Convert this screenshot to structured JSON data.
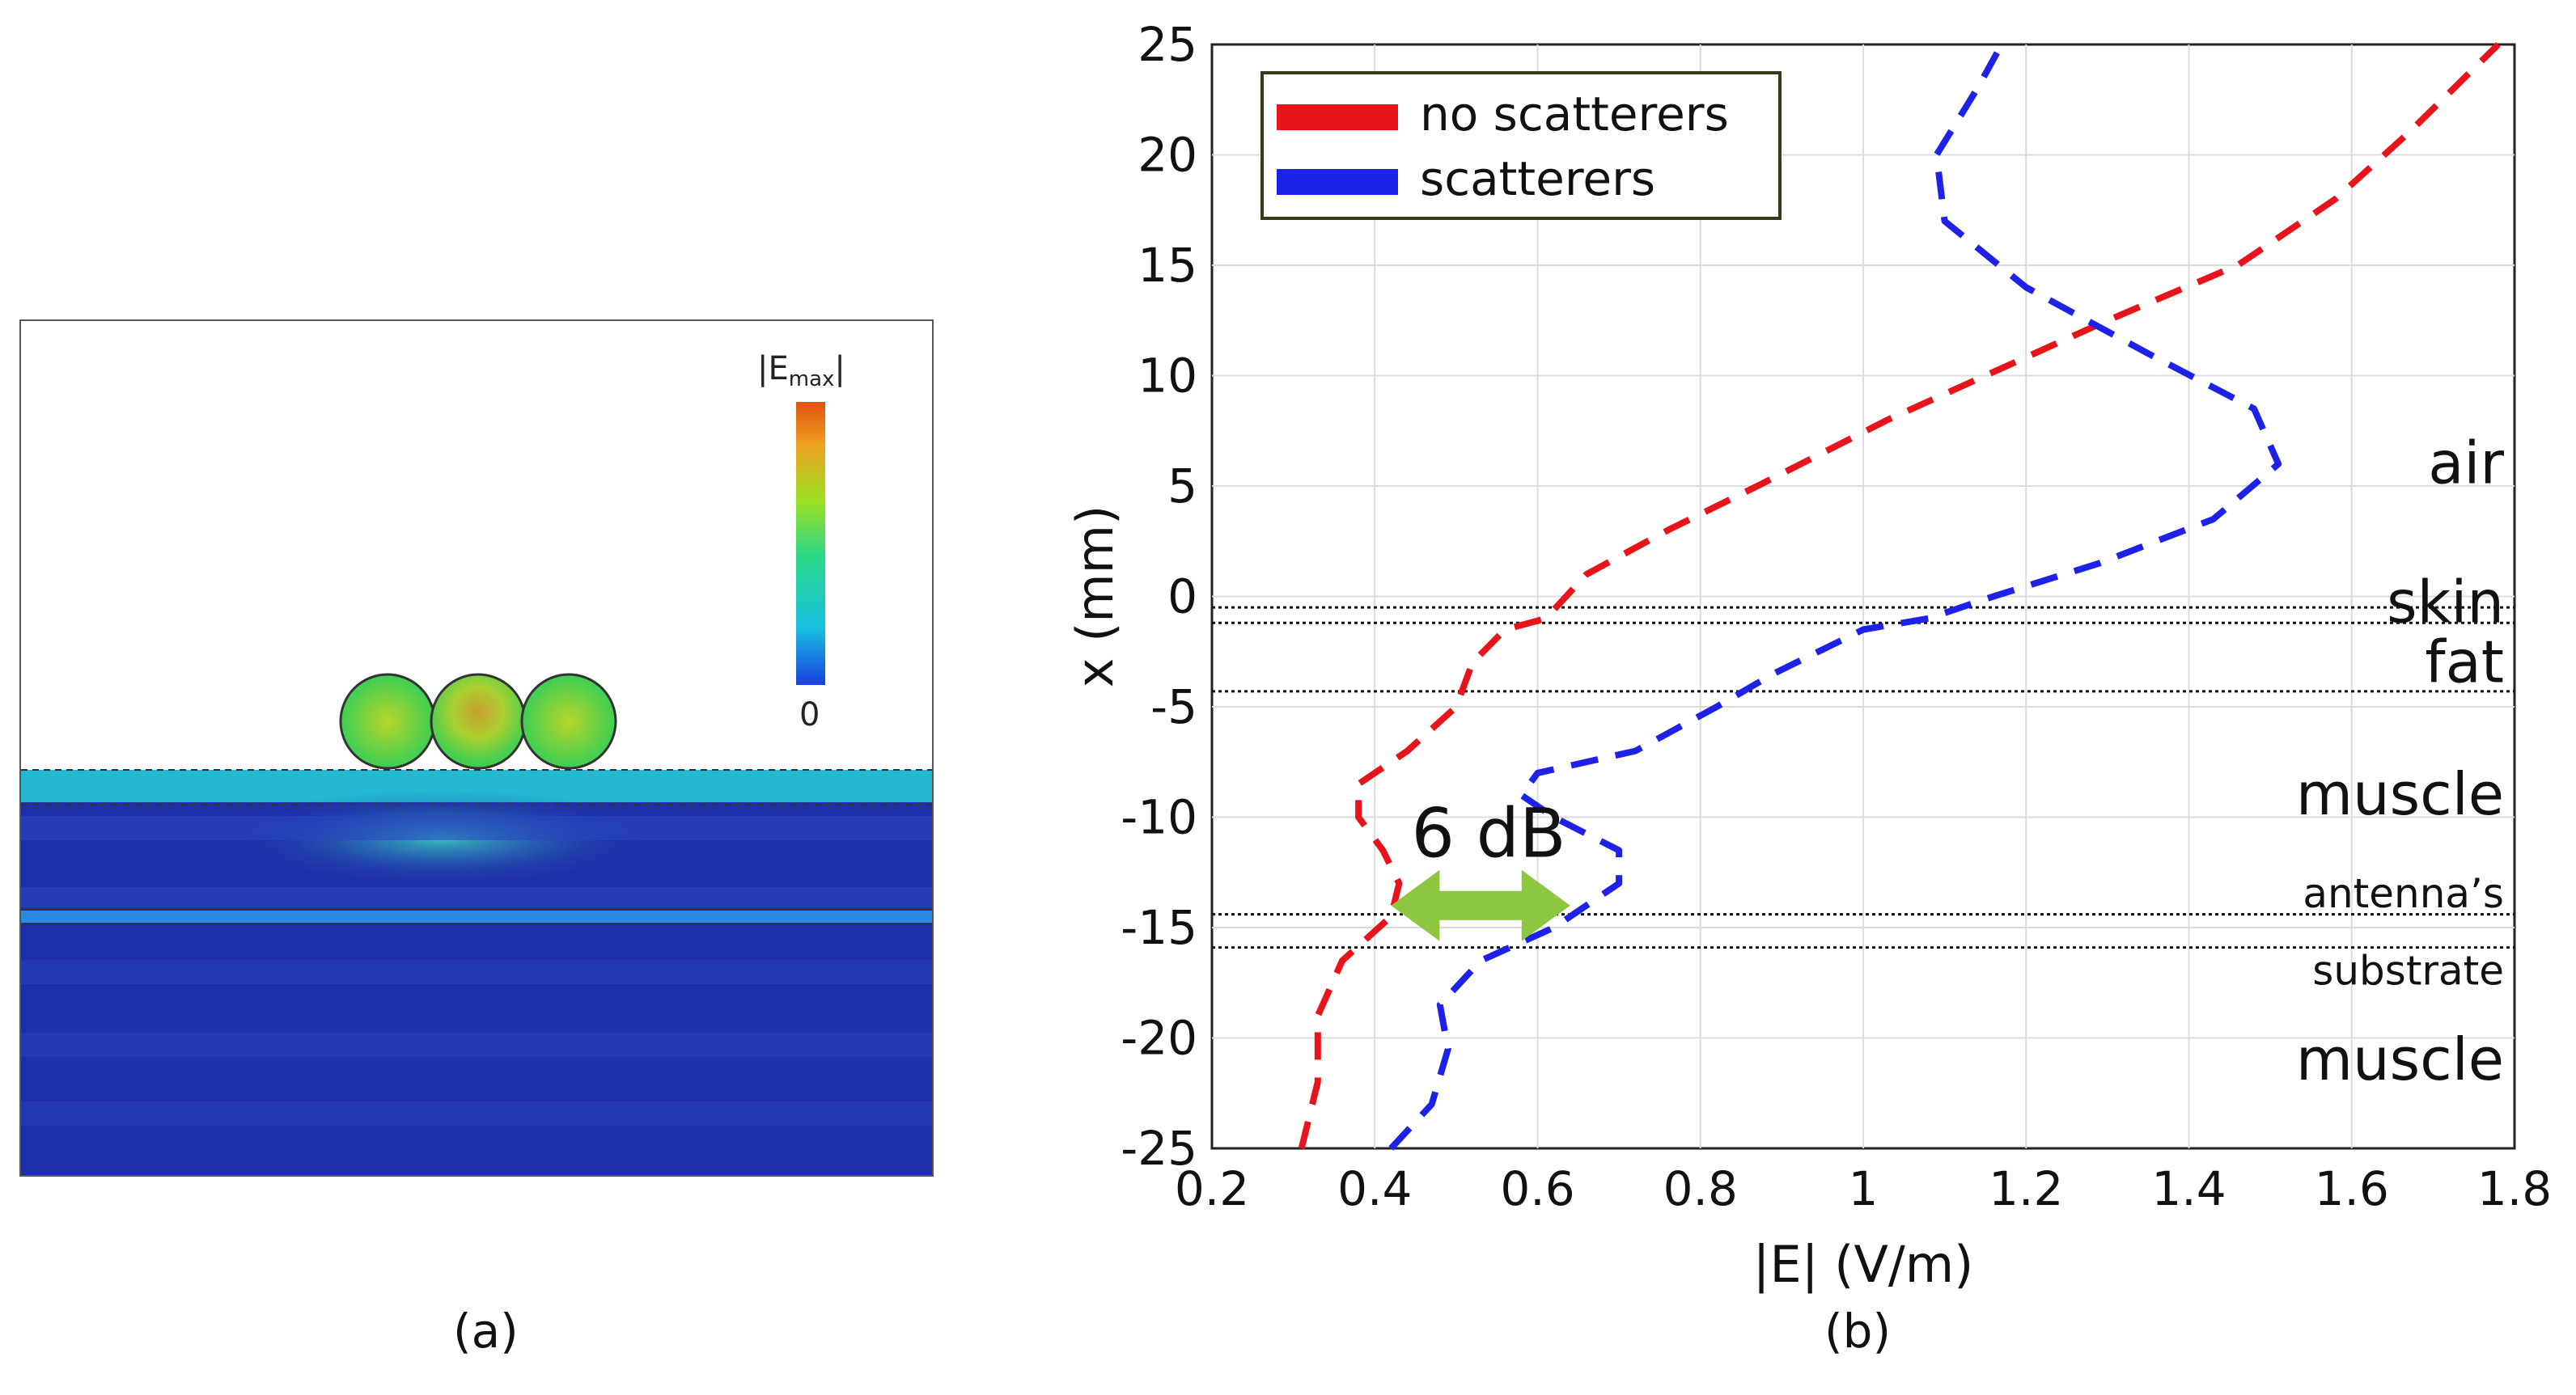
{
  "panel_a": {
    "caption": "(a)",
    "colorbar_label": "|E",
    "colorbar_label_sub": "max",
    "colorbar_label_end": "|",
    "colorbar_min": "0"
  },
  "panel_b": {
    "caption": "(b)"
  },
  "chart_data": {
    "type": "line",
    "xlabel": "|E| (V/m)",
    "ylabel": "x (mm)",
    "xlim": [
      0.2,
      1.8
    ],
    "ylim": [
      -25,
      25
    ],
    "xticks": [
      "0.2",
      "0.4",
      "0.6",
      "0.8",
      "1",
      "1.2",
      "1.4",
      "1.6",
      "1.8"
    ],
    "yticks": [
      "25",
      "20",
      "15",
      "10",
      "5",
      "0",
      "-5",
      "-10",
      "-15",
      "-20",
      "-25"
    ],
    "grid": true,
    "legend_position": "top-left",
    "series": [
      {
        "name": "no scatterers",
        "color": "#e8141b",
        "style": "dashed",
        "points": [
          [
            0.31,
            -25
          ],
          [
            0.33,
            -22
          ],
          [
            0.33,
            -19
          ],
          [
            0.36,
            -16.5
          ],
          [
            0.42,
            -14.5
          ],
          [
            0.43,
            -13
          ],
          [
            0.41,
            -11.5
          ],
          [
            0.38,
            -10
          ],
          [
            0.38,
            -8.5
          ],
          [
            0.44,
            -7
          ],
          [
            0.5,
            -5
          ],
          [
            0.52,
            -3
          ],
          [
            0.56,
            -1.5
          ],
          [
            0.61,
            -1
          ],
          [
            0.66,
            1
          ],
          [
            0.76,
            3
          ],
          [
            0.87,
            5
          ],
          [
            1.03,
            8
          ],
          [
            1.15,
            10
          ],
          [
            1.3,
            12.5
          ],
          [
            1.46,
            15
          ],
          [
            1.58,
            18
          ],
          [
            1.67,
            21
          ],
          [
            1.78,
            25
          ]
        ]
      },
      {
        "name": "scatterers",
        "color": "#1e22e6",
        "style": "dashed",
        "points": [
          [
            0.42,
            -25
          ],
          [
            0.47,
            -23
          ],
          [
            0.49,
            -20.5
          ],
          [
            0.48,
            -18.5
          ],
          [
            0.53,
            -16.5
          ],
          [
            0.62,
            -15
          ],
          [
            0.7,
            -13
          ],
          [
            0.7,
            -11.5
          ],
          [
            0.62,
            -10
          ],
          [
            0.58,
            -9
          ],
          [
            0.6,
            -8
          ],
          [
            0.72,
            -7
          ],
          [
            0.82,
            -5
          ],
          [
            0.89,
            -3.5
          ],
          [
            1.0,
            -1.5
          ],
          [
            1.08,
            -1
          ],
          [
            1.16,
            0
          ],
          [
            1.29,
            1.5
          ],
          [
            1.43,
            3.5
          ],
          [
            1.51,
            6
          ],
          [
            1.48,
            8.5
          ],
          [
            1.35,
            11
          ],
          [
            1.2,
            14
          ],
          [
            1.1,
            17
          ],
          [
            1.09,
            20
          ],
          [
            1.14,
            23
          ],
          [
            1.17,
            25
          ]
        ]
      }
    ],
    "layer_boundaries": [
      -0.5,
      -1.2,
      -4.3,
      -14.4,
      -15.9
    ],
    "region_labels": [
      {
        "text": "air",
        "y": 6
      },
      {
        "text": "skin",
        "y": -0.3
      },
      {
        "text": "fat",
        "y": -3
      },
      {
        "text": "muscle",
        "y": -9
      },
      {
        "text": "antenna’s",
        "y": -13.5
      },
      {
        "text": "substrate",
        "y": -17
      },
      {
        "text": "muscle",
        "y": -21
      }
    ],
    "annotation": {
      "text": "6 dB",
      "x_from": 0.42,
      "x_to": 0.64,
      "y": -14
    }
  }
}
